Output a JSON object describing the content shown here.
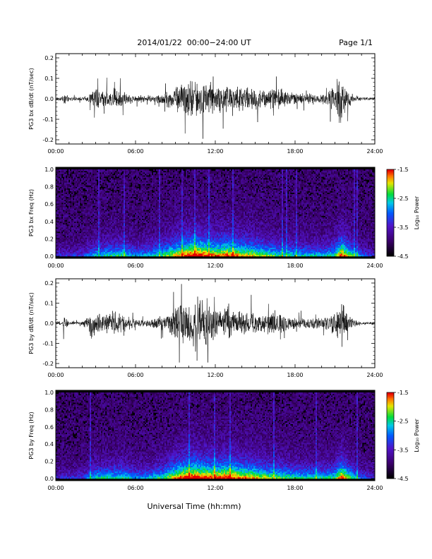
{
  "header": {
    "title": "2014/01/22  00:00−24:00 UT",
    "page": "Page 1/1"
  },
  "footer": {
    "xlabel": "Universal Time (hh:mm)"
  },
  "chart_data": [
    {
      "type": "line",
      "ylabel": "PG3 bx dB/dt (nT/sec)",
      "xlim_hours": [
        0,
        24
      ],
      "ylim": [
        -0.2,
        0.2
      ],
      "yticks": [
        "0.2",
        "0.1",
        "0.0",
        "-0.1",
        "-0.2"
      ],
      "xticks": [
        "00:00",
        "06:00",
        "12:00",
        "18:00",
        "24:00"
      ],
      "envelope": {
        "hours": [
          0,
          0.5,
          0.6,
          1,
          2,
          2.5,
          3,
          3.5,
          4,
          4.5,
          5,
          5.5,
          6,
          6.5,
          7,
          7.5,
          8,
          8.5,
          9,
          9.5,
          10,
          10.5,
          11,
          11.5,
          12,
          12.5,
          13,
          13.5,
          14,
          14.5,
          15,
          15.5,
          16,
          16.5,
          17,
          17.5,
          18,
          18.5,
          19,
          19.5,
          20,
          20.5,
          21,
          21.3,
          21.5,
          21.7,
          22,
          22.5,
          23,
          23.5,
          24
        ],
        "amplitude": [
          0.01,
          0.01,
          0.04,
          0.01,
          0.01,
          0.03,
          0.06,
          0.04,
          0.05,
          0.06,
          0.04,
          0.03,
          0.02,
          0.02,
          0.02,
          0.02,
          0.03,
          0.05,
          0.07,
          0.09,
          0.11,
          0.1,
          0.12,
          0.09,
          0.08,
          0.07,
          0.09,
          0.08,
          0.07,
          0.06,
          0.07,
          0.05,
          0.06,
          0.05,
          0.06,
          0.04,
          0.03,
          0.03,
          0.03,
          0.03,
          0.03,
          0.04,
          0.08,
          0.15,
          0.14,
          0.1,
          0.05,
          0.02,
          0.01,
          0.01,
          0.01
        ]
      }
    },
    {
      "type": "heatmap",
      "ylabel": "PG3 bx Freq (Hz)",
      "xlim_hours": [
        0,
        24
      ],
      "ylim": [
        0.0,
        1.0
      ],
      "yticks": [
        "1.0",
        "0.8",
        "0.6",
        "0.4",
        "0.2",
        "0.0"
      ],
      "xticks": [
        "00:00",
        "06:00",
        "12:00",
        "18:00",
        "24:00"
      ],
      "colorbar": {
        "label": "Log₁₀ Power",
        "ticks": [
          "-1.5",
          "-2.5",
          "-3.5",
          "-4.5"
        ],
        "range": [
          -4.5,
          -1.5
        ]
      },
      "activity_hours": [
        0,
        2,
        3,
        4,
        5,
        6,
        7,
        8,
        9,
        10,
        10.5,
        11,
        12,
        13,
        14,
        15,
        16,
        17,
        18,
        19,
        20,
        21,
        21.5,
        22,
        23,
        24
      ],
      "activity_level": [
        0.25,
        0.3,
        0.5,
        0.55,
        0.6,
        0.45,
        0.5,
        0.6,
        0.8,
        0.95,
        1.0,
        0.95,
        0.85,
        0.9,
        0.8,
        0.75,
        0.65,
        0.6,
        0.55,
        0.5,
        0.5,
        0.6,
        0.95,
        0.7,
        0.35,
        0.25
      ]
    },
    {
      "type": "line",
      "ylabel": "PG3 by dB/dt (nT/sec)",
      "xlim_hours": [
        0,
        24
      ],
      "ylim": [
        -0.2,
        0.2
      ],
      "yticks": [
        "0.2",
        "0.1",
        "0.0",
        "-0.1",
        "-0.2"
      ],
      "xticks": [
        "00:00",
        "06:00",
        "12:00",
        "18:00",
        "24:00"
      ],
      "envelope": {
        "hours": [
          0,
          0.5,
          0.6,
          1,
          2,
          2.5,
          2.8,
          3,
          3.5,
          4,
          4.5,
          5,
          5.5,
          6,
          6.5,
          7,
          7.5,
          8,
          8.5,
          9,
          9.5,
          10,
          10.5,
          11,
          11.5,
          12,
          12.5,
          13,
          13.5,
          14,
          14.5,
          15,
          15.5,
          16,
          16.5,
          17,
          17.5,
          18,
          18.5,
          19,
          19.5,
          20,
          20.5,
          21,
          21.3,
          21.5,
          21.7,
          22,
          22.5,
          23,
          23.5,
          24
        ],
        "amplitude": [
          0.01,
          0.01,
          0.05,
          0.01,
          0.01,
          0.05,
          0.1,
          0.07,
          0.05,
          0.06,
          0.07,
          0.05,
          0.04,
          0.02,
          0.02,
          0.02,
          0.03,
          0.04,
          0.06,
          0.09,
          0.12,
          0.14,
          0.15,
          0.16,
          0.13,
          0.09,
          0.07,
          0.1,
          0.08,
          0.07,
          0.06,
          0.07,
          0.05,
          0.06,
          0.05,
          0.06,
          0.04,
          0.03,
          0.03,
          0.03,
          0.03,
          0.03,
          0.04,
          0.07,
          0.12,
          0.14,
          0.1,
          0.05,
          0.02,
          0.01,
          0.01,
          0.01
        ]
      }
    },
    {
      "type": "heatmap",
      "ylabel": "PG3 by Freq (Hz)",
      "xlim_hours": [
        0,
        24
      ],
      "ylim": [
        0.0,
        1.0
      ],
      "yticks": [
        "1.0",
        "0.8",
        "0.6",
        "0.4",
        "0.2",
        "0.0"
      ],
      "xticks": [
        "00:00",
        "06:00",
        "12:00",
        "18:00",
        "24:00"
      ],
      "colorbar": {
        "label": "Log₁₀ Power",
        "ticks": [
          "-1.5",
          "-2.5",
          "-3.5",
          "-4.5"
        ],
        "range": [
          -4.5,
          -1.5
        ]
      },
      "activity_hours": [
        0,
        2,
        3,
        4,
        5,
        6,
        7,
        8,
        9,
        10,
        10.5,
        11,
        12,
        13,
        14,
        15,
        16,
        17,
        18,
        19,
        20,
        21,
        21.5,
        22,
        23,
        24
      ],
      "activity_level": [
        0.25,
        0.3,
        0.55,
        0.55,
        0.6,
        0.45,
        0.5,
        0.6,
        0.85,
        1.0,
        1.0,
        0.95,
        0.9,
        0.95,
        0.85,
        0.8,
        0.7,
        0.65,
        0.6,
        0.55,
        0.55,
        0.6,
        0.95,
        0.7,
        0.35,
        0.25
      ]
    }
  ]
}
